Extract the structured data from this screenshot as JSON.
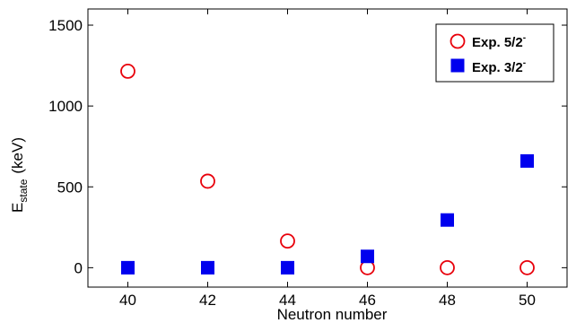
{
  "chart_data": {
    "type": "scatter",
    "title": "",
    "xlabel": "Neutron number",
    "ylabel": {
      "main": "E",
      "subscript": "state",
      "unit": "(keV)"
    },
    "xlim": [
      39,
      51
    ],
    "ylim": [
      -120,
      1600
    ],
    "xticks": [
      "40",
      "42",
      "44",
      "46",
      "48",
      "50"
    ],
    "xtick_values": [
      40,
      42,
      44,
      46,
      48,
      50
    ],
    "yticks": [
      "0",
      "500",
      "1000",
      "1500"
    ],
    "ytick_values": [
      0,
      500,
      1000,
      1500
    ],
    "grid": false,
    "legend_position": "top-right",
    "series": [
      {
        "name": "Exp. 5/2",
        "name_sup": "-",
        "marker": "circle-open",
        "color": "#e8000b",
        "x": [
          40,
          42,
          44,
          46,
          48,
          50
        ],
        "y": [
          1215,
          535,
          165,
          0,
          0,
          0
        ]
      },
      {
        "name": "Exp. 3/2",
        "name_sup": "-",
        "marker": "square-filled",
        "color": "#0000ee",
        "x": [
          40,
          42,
          44,
          46,
          48,
          50
        ],
        "y": [
          0,
          0,
          0,
          70,
          295,
          660
        ]
      }
    ]
  }
}
